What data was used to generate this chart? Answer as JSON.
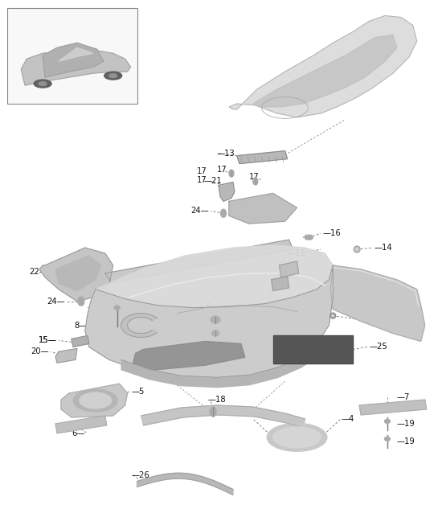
{
  "bg_color": "#ffffff",
  "fig_width": 5.45,
  "fig_height": 6.28,
  "dpi": 100,
  "line_color": "#555555",
  "label_fontsize": 7.2,
  "label_color": "#111111",
  "gray_light": "#d0d0d0",
  "gray_mid": "#b8b8b8",
  "gray_dark": "#909090",
  "gray_very_light": "#e0e0e0"
}
